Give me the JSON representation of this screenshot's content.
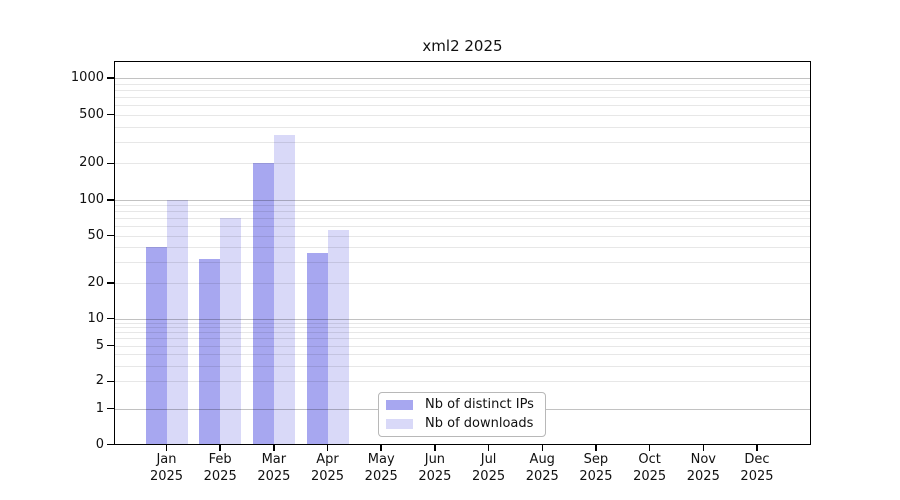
{
  "chart_data": {
    "type": "bar",
    "title": "xml2 2025",
    "categories": [
      "Jan 2025",
      "Feb 2025",
      "Mar 2025",
      "Apr 2025",
      "May 2025",
      "Jun 2025",
      "Jul 2025",
      "Aug 2025",
      "Sep 2025",
      "Oct 2025",
      "Nov 2025",
      "Dec 2025"
    ],
    "month_labels": [
      "Jan",
      "Feb",
      "Mar",
      "Apr",
      "May",
      "Jun",
      "Jul",
      "Aug",
      "Sep",
      "Oct",
      "Nov",
      "Dec"
    ],
    "year_label": "2025",
    "series": [
      {
        "name": "Nb of distinct IPs",
        "color": "#a7a7f0",
        "values": [
          40,
          32,
          200,
          36,
          0,
          0,
          0,
          0,
          0,
          0,
          0,
          0
        ]
      },
      {
        "name": "Nb of downloads",
        "color": "#d9d9f8",
        "values": [
          100,
          71,
          340,
          56,
          0,
          0,
          0,
          0,
          0,
          0,
          0,
          0
        ]
      }
    ],
    "y_axis": {
      "scale": "log-like with zero baseline",
      "tick_values": [
        0,
        1,
        2,
        5,
        10,
        20,
        50,
        100,
        200,
        500,
        1000
      ],
      "tick_labels": [
        "0",
        "1",
        "2",
        "5",
        "10",
        "20",
        "50",
        "100",
        "200",
        "500",
        "1000"
      ],
      "range": [
        0,
        1000
      ]
    },
    "x_axis": {
      "tick_style": "month centers, two-line labels"
    },
    "grid": {
      "horizontal": true,
      "minor_log_lines": true,
      "vertical": false
    },
    "legend": {
      "position": "inside-bottom-center",
      "items": [
        "Nb of distinct IPs",
        "Nb of downloads"
      ]
    }
  },
  "colors": {
    "bar_distinct_ips": "#a7a7f0",
    "bar_downloads": "#d9d9f8",
    "major_gridline": "rgba(0,0,0,0.24)",
    "minor_gridline": "rgba(0,0,0,0.095)",
    "axis_spine": "#000000",
    "text": "#111111",
    "legend_border": "#b8b8b8",
    "background": "#ffffff"
  }
}
